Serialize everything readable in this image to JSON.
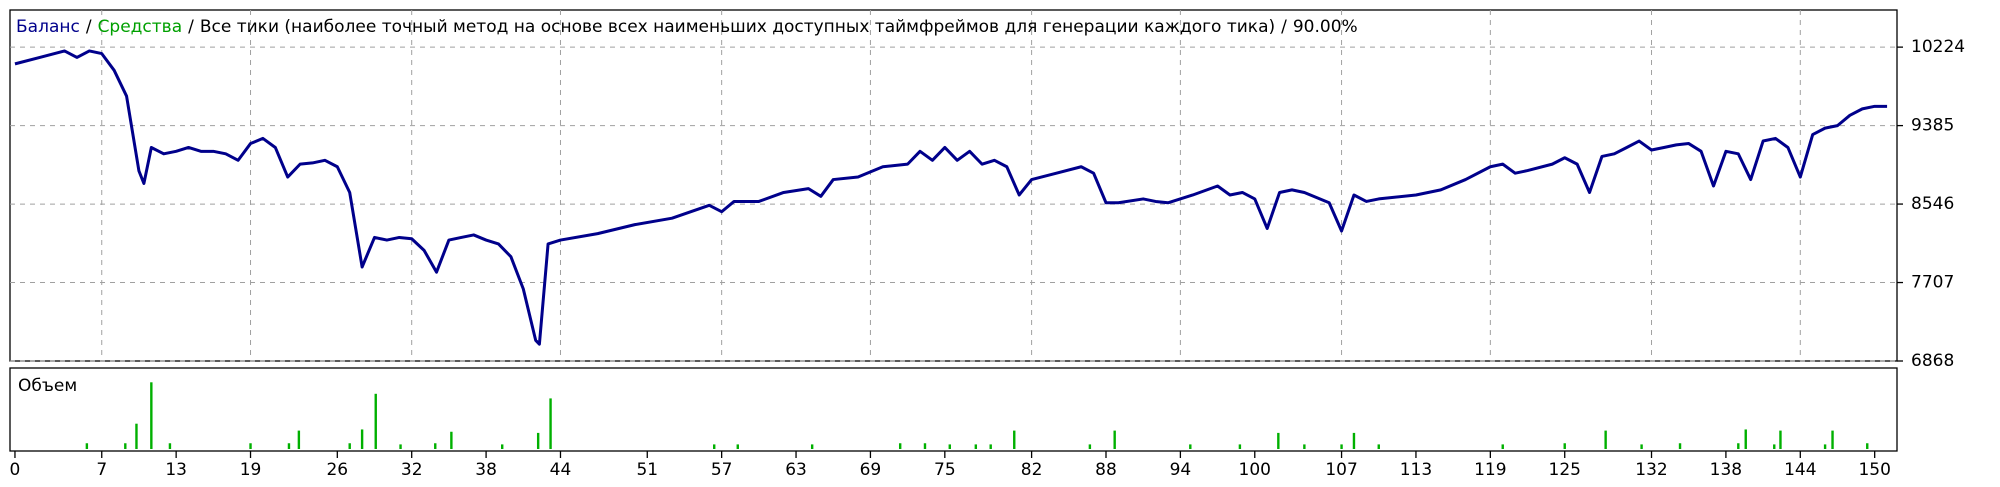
{
  "chart_data": [
    {
      "type": "line",
      "title": "Все тики (наиболее точный метод на основе всех наименьших доступных таймфреймов для генерации каждого тика)",
      "subtitle": "90.00%",
      "separator": "/",
      "x": [
        0,
        2,
        4,
        5,
        6,
        7,
        8,
        9,
        10,
        10.4,
        11,
        12,
        13,
        14,
        15,
        16,
        17,
        18,
        19,
        20,
        21,
        22,
        23,
        24,
        25,
        26,
        27,
        28,
        29,
        30,
        31,
        32,
        33,
        34,
        35,
        36,
        37,
        38,
        39,
        40,
        41,
        42,
        42.3,
        43,
        44,
        47,
        50,
        53,
        56,
        57,
        58,
        60,
        62,
        64,
        65,
        66,
        68,
        70,
        72,
        73,
        74,
        75,
        76,
        77,
        78,
        79,
        80,
        81,
        82,
        84,
        86,
        87,
        88,
        89,
        91,
        92,
        93,
        95,
        97,
        98,
        99,
        100,
        101,
        102,
        103,
        104,
        106,
        107,
        108,
        109,
        110,
        113,
        115,
        117,
        119,
        120,
        121,
        122,
        124,
        125,
        126,
        127,
        128,
        129,
        130,
        131,
        132,
        133,
        134,
        135,
        136,
        137,
        138,
        139,
        140,
        141,
        142,
        143,
        144,
        145,
        146,
        147,
        148,
        149,
        150,
        151
      ],
      "series": [
        {
          "name": "Баланс",
          "color": "#00008b",
          "values": [
            10045,
            10114,
            10183,
            10114,
            10183,
            10155,
            9976,
            9701,
            8900,
            8766,
            9151,
            9083,
            9110,
            9151,
            9110,
            9110,
            9083,
            9014,
            9193,
            9248,
            9151,
            8835,
            8973,
            8986,
            9014,
            8945,
            8670,
            7873,
            8189,
            8161,
            8189,
            8175,
            8051,
            7818,
            8161,
            8189,
            8216,
            8161,
            8120,
            7983,
            7639,
            7089,
            7048,
            8120,
            8161,
            8230,
            8326,
            8395,
            8533,
            8464,
            8574,
            8574,
            8670,
            8711,
            8629,
            8808,
            8835,
            8945,
            8973,
            9110,
            9014,
            9151,
            9014,
            9110,
            8973,
            9014,
            8945,
            8643,
            8808,
            8876,
            8945,
            8876,
            8560,
            8560,
            8601,
            8574,
            8560,
            8643,
            8739,
            8643,
            8670,
            8601,
            8285,
            8670,
            8698,
            8670,
            8560,
            8258,
            8643,
            8574,
            8601,
            8643,
            8698,
            8808,
            8945,
            8973,
            8876,
            8904,
            8973,
            9041,
            8973,
            8670,
            9055,
            9083,
            9151,
            9220,
            9124,
            9151,
            9179,
            9193,
            9110,
            8739,
            9110,
            9083,
            8808,
            9220,
            9248,
            9151,
            8835,
            9289,
            9358,
            9385,
            9495,
            9564,
            9591,
            9591
          ]
        },
        {
          "name": "Средства",
          "color": "#00a000"
        }
      ],
      "xlim": [
        -0.4,
        151.8
      ],
      "xticks": [
        0,
        7,
        13,
        19,
        26,
        32,
        38,
        44,
        51,
        57,
        63,
        69,
        75,
        82,
        88,
        94,
        100,
        107,
        113,
        119,
        125,
        132,
        138,
        144,
        150
      ],
      "ylim": [
        6868,
        10621
      ],
      "yticks": [
        10224,
        9385,
        8546,
        7707,
        6868
      ],
      "grid": true
    },
    {
      "type": "bar",
      "title": "Объем",
      "color": "#00b000",
      "x": [
        5.8,
        8.9,
        9.8,
        11.0,
        12.5,
        19.0,
        22.1,
        22.9,
        27.0,
        28.0,
        29.1,
        31.1,
        33.9,
        35.2,
        39.3,
        42.2,
        43.2,
        56.4,
        58.3,
        64.3,
        71.4,
        73.4,
        75.4,
        77.5,
        78.7,
        80.6,
        86.7,
        88.7,
        94.8,
        98.8,
        101.9,
        104.0,
        107.0,
        108.0,
        110.0,
        120.0,
        125.0,
        128.3,
        131.2,
        134.3,
        139.0,
        139.6,
        141.9,
        142.4,
        146.0,
        146.6,
        149.4
      ],
      "values": [
        5,
        5,
        22,
        58,
        5,
        5,
        5,
        16,
        5,
        17,
        48,
        4,
        5,
        15,
        4,
        14,
        44,
        4,
        4,
        4,
        5,
        5,
        4,
        4,
        4,
        16,
        4,
        16,
        4,
        4,
        14,
        4,
        4,
        14,
        4,
        4,
        5,
        16,
        4,
        5,
        5,
        17,
        4,
        16,
        4,
        16,
        5
      ],
      "xlim": [
        -0.4,
        151.8
      ],
      "ylim": [
        0,
        60
      ]
    }
  ]
}
